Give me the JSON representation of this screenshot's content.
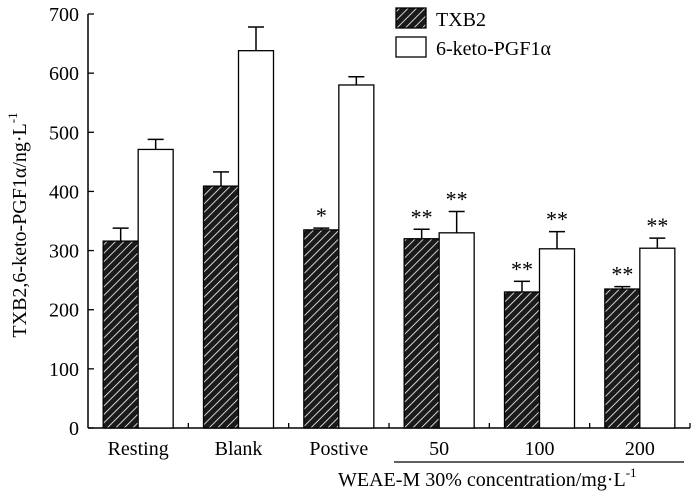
{
  "chart_data": {
    "type": "bar",
    "categories": [
      "Resting",
      "Blank",
      "Postive",
      "50",
      "100",
      "200"
    ],
    "series": [
      {
        "name": "TXB2",
        "fill": "hatched",
        "values": [
          316,
          409,
          335,
          320,
          230,
          235
        ],
        "errors": [
          22,
          24,
          3,
          16,
          18,
          4
        ],
        "significance": [
          "",
          "",
          "*",
          "**",
          "**",
          "**"
        ]
      },
      {
        "name": "6-keto-PGF1α",
        "fill": "white",
        "values": [
          471,
          638,
          580,
          330,
          303,
          304
        ],
        "errors": [
          17,
          40,
          14,
          36,
          29,
          17
        ],
        "significance": [
          "",
          "",
          "",
          "**",
          "**",
          "**"
        ]
      }
    ],
    "ylabel": {
      "main": "TXB2,6-keto-PGF1α/ng·L",
      "sup": "-1"
    },
    "xlabel": {
      "main": "WEAE-M 30% concentration/mg·L",
      "sup": "-1"
    },
    "ylim": [
      0,
      700
    ],
    "yticks": [
      0,
      100,
      200,
      300,
      400,
      500,
      600,
      700
    ],
    "grid": false,
    "legend": "top-center",
    "colors": {
      "bar_stroke": "#000000",
      "hatch_bg": "#1a1a1a",
      "hatch_line": "#ffffff",
      "open_fill": "#ffffff"
    }
  }
}
